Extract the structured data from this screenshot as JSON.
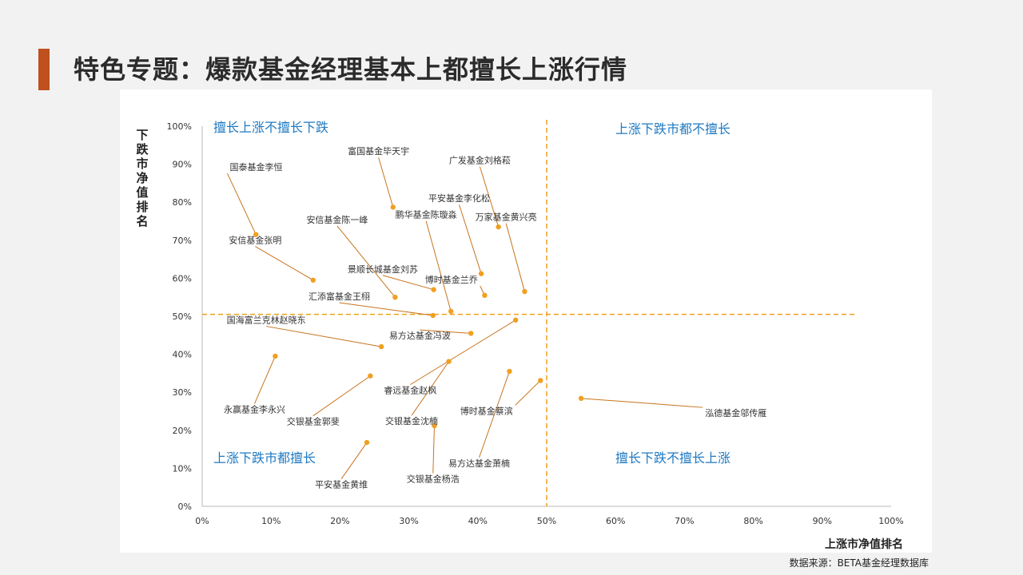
{
  "page": {
    "title": "特色专题：爆款基金经理基本上都擅长上涨行情",
    "source": "数据来源：BETA基金经理数据库",
    "accent_color": "#c0501e",
    "point_color": "#f0a020",
    "leader_color": "#c7741e",
    "quadrant_label_color": "#1f7ac2"
  },
  "chart_data": {
    "type": "scatter",
    "xlabel": "上涨市净值排名",
    "ylabel": "下跌市净值排名",
    "xlim": [
      0,
      100
    ],
    "ylim": [
      0,
      100
    ],
    "x_ticks": [
      "0%",
      "10%",
      "20%",
      "30%",
      "40%",
      "50%",
      "60%",
      "70%",
      "80%",
      "90%",
      "100%"
    ],
    "y_ticks": [
      "0%",
      "10%",
      "20%",
      "30%",
      "40%",
      "50%",
      "60%",
      "70%",
      "80%",
      "90%",
      "100%"
    ],
    "divider_x": 50,
    "divider_y": 50.5,
    "grid": false,
    "quadrant_labels": [
      {
        "text": "擅长上涨不擅长下跌",
        "quadrant": "top-left"
      },
      {
        "text": "上涨下跌市都不擅长",
        "quadrant": "top-right"
      },
      {
        "text": "上涨下跌市都擅长",
        "quadrant": "bottom-left"
      },
      {
        "text": "擅长下跌不擅长上涨",
        "quadrant": "bottom-right"
      }
    ],
    "points": [
      {
        "name": "国泰基金李恒",
        "x": 7.8,
        "y": 71.5,
        "lx": 4,
        "ly": 88.4,
        "anchor": "start"
      },
      {
        "name": "富国基金毕天宇",
        "x": 27.7,
        "y": 78.7,
        "lx": 25.6,
        "ly": 92.6,
        "anchor": "middle"
      },
      {
        "name": "广发基金刘格菘",
        "x": 43.0,
        "y": 73.5,
        "lx": 40.3,
        "ly": 90.2,
        "anchor": "middle"
      },
      {
        "name": "平安基金李化松",
        "x": 40.5,
        "y": 61.2,
        "lx": 37.3,
        "ly": 80.2,
        "anchor": "middle"
      },
      {
        "name": "万家基金黄兴亮",
        "x": 46.8,
        "y": 56.5,
        "lx": 44.1,
        "ly": 75.3,
        "anchor": "middle"
      },
      {
        "name": "安信基金陈一峰",
        "x": 28.0,
        "y": 55.0,
        "lx": 19.6,
        "ly": 74.6,
        "anchor": "middle"
      },
      {
        "name": "鹏华基金陈璇淼",
        "x": 36.1,
        "y": 51.3,
        "lx": 32.5,
        "ly": 75.9,
        "anchor": "middle"
      },
      {
        "name": "安信基金张明",
        "x": 16.1,
        "y": 59.5,
        "lx": 7.7,
        "ly": 69.2,
        "anchor": "middle"
      },
      {
        "name": "景顺长城基金刘苏",
        "x": 33.6,
        "y": 57.0,
        "lx": 26.2,
        "ly": 61.6,
        "anchor": "middle"
      },
      {
        "name": "博时基金兰乔",
        "x": 41.0,
        "y": 55.5,
        "lx": 40.0,
        "ly": 58.8,
        "anchor": "end"
      },
      {
        "name": "汇添富基金王栩",
        "x": 33.5,
        "y": 50.2,
        "lx": 19.9,
        "ly": 54.4,
        "anchor": "middle"
      },
      {
        "name": "国海富兰克林赵晓东",
        "x": 26.0,
        "y": 42.0,
        "lx": 9.3,
        "ly": 48.2,
        "anchor": "middle"
      },
      {
        "name": "易方达基金冯波",
        "x": 39.0,
        "y": 45.5,
        "lx": 31.6,
        "ly": 44.1,
        "anchor": "middle"
      },
      {
        "name": "永赢基金李永兴",
        "x": 10.6,
        "y": 39.5,
        "lx": 7.6,
        "ly": 24.7,
        "anchor": "middle"
      },
      {
        "name": "睿远基金赵枫",
        "x": 45.5,
        "y": 49.0,
        "lx": 30.2,
        "ly": 29.7,
        "anchor": "middle"
      },
      {
        "name": "交银基金郭斐",
        "x": 24.4,
        "y": 34.3,
        "lx": 16.1,
        "ly": 21.5,
        "anchor": "middle"
      },
      {
        "name": "交银基金沈楠",
        "x": 35.8,
        "y": 38.1,
        "lx": 30.4,
        "ly": 21.6,
        "anchor": "middle"
      },
      {
        "name": "博时基金蔡滨",
        "x": 49.1,
        "y": 33.1,
        "lx": 45.1,
        "ly": 24.3,
        "anchor": "end"
      },
      {
        "name": "泓德基金邬传雁",
        "x": 55.0,
        "y": 28.4,
        "lx": 73.0,
        "ly": 23.7,
        "anchor": "start"
      },
      {
        "name": "易方达基金萧楠",
        "x": 44.6,
        "y": 35.5,
        "lx": 40.2,
        "ly": 10.5,
        "anchor": "middle"
      },
      {
        "name": "交银基金杨浩",
        "x": 33.7,
        "y": 21.2,
        "lx": 33.5,
        "ly": 6.4,
        "anchor": "middle"
      },
      {
        "name": "平安基金黄维",
        "x": 23.9,
        "y": 16.8,
        "lx": 20.2,
        "ly": 4.9,
        "anchor": "middle"
      }
    ]
  }
}
